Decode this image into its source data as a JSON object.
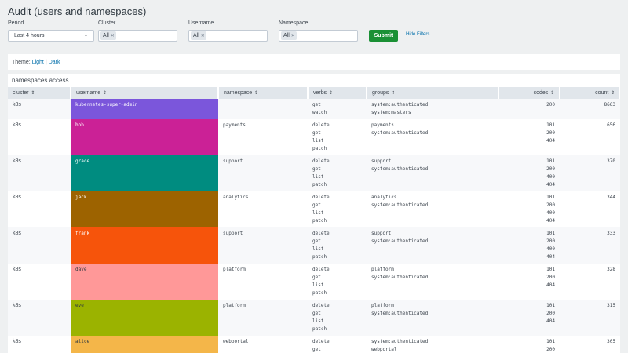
{
  "page": {
    "title": "Audit (users and namespaces)"
  },
  "filters": {
    "period": {
      "label": "Period",
      "value": "Last 4 hours"
    },
    "cluster": {
      "label": "Cluster",
      "token": "All"
    },
    "username": {
      "label": "Username",
      "token": "All"
    },
    "namespace": {
      "label": "Namespace",
      "token": "All"
    },
    "submit_label": "Submit",
    "hide_label": "Hide Filters"
  },
  "theme": {
    "prefix": "Theme:",
    "light": "Light",
    "separator": "|",
    "dark": "Dark"
  },
  "table": {
    "title": "namespaces access",
    "columns": [
      "cluster",
      "username",
      "namespace",
      "verbs",
      "groups",
      "codes",
      "count"
    ],
    "sort_icon": "sort-icon",
    "rows": [
      {
        "cluster": "k8s",
        "username": "kubernetes-super-admin",
        "color": "#7b56db",
        "text_dark": false,
        "namespace": "",
        "verbs": [
          "get",
          "watch"
        ],
        "groups": [
          "system:authenticated",
          "system:masters"
        ],
        "codes": [
          "200"
        ],
        "count": "8663"
      },
      {
        "cluster": "k8s",
        "username": "bob",
        "color": "#cb2196",
        "text_dark": false,
        "namespace": "payments",
        "verbs": [
          "delete",
          "get",
          "list",
          "patch"
        ],
        "groups": [
          "payments",
          "system:authenticated"
        ],
        "codes": [
          "101",
          "200",
          "404"
        ],
        "count": "656"
      },
      {
        "cluster": "k8s",
        "username": "grace",
        "color": "#008c80",
        "text_dark": false,
        "namespace": "support",
        "verbs": [
          "delete",
          "get",
          "list",
          "patch"
        ],
        "groups": [
          "support",
          "system:authenticated"
        ],
        "codes": [
          "101",
          "200",
          "400",
          "404"
        ],
        "count": "370"
      },
      {
        "cluster": "k8s",
        "username": "jack",
        "color": "#9d6300",
        "text_dark": false,
        "namespace": "analytics",
        "verbs": [
          "delete",
          "get",
          "list",
          "patch"
        ],
        "groups": [
          "analytics",
          "system:authenticated"
        ],
        "codes": [
          "101",
          "200",
          "400",
          "404"
        ],
        "count": "344"
      },
      {
        "cluster": "k8s",
        "username": "frank",
        "color": "#f6540b",
        "text_dark": false,
        "namespace": "support",
        "verbs": [
          "delete",
          "get",
          "list",
          "patch"
        ],
        "groups": [
          "support",
          "system:authenticated"
        ],
        "codes": [
          "101",
          "200",
          "400",
          "404"
        ],
        "count": "333"
      },
      {
        "cluster": "k8s",
        "username": "dave",
        "color": "#ff9898",
        "text_dark": true,
        "namespace": "platform",
        "verbs": [
          "delete",
          "get",
          "list",
          "patch"
        ],
        "groups": [
          "platform",
          "system:authenticated"
        ],
        "codes": [
          "101",
          "200",
          "404"
        ],
        "count": "328"
      },
      {
        "cluster": "k8s",
        "username": "eve",
        "color": "#9bb300",
        "text_dark": true,
        "namespace": "platform",
        "verbs": [
          "delete",
          "get",
          "list",
          "patch"
        ],
        "groups": [
          "platform",
          "system:authenticated"
        ],
        "codes": [
          "101",
          "200",
          "404"
        ],
        "count": "315"
      },
      {
        "cluster": "k8s",
        "username": "alice",
        "color": "#f4b649",
        "text_dark": true,
        "namespace": "webportal",
        "verbs": [
          "delete",
          "get"
        ],
        "groups": [
          "system:authenticated",
          "webportal"
        ],
        "codes": [
          "101",
          "200"
        ],
        "count": "305"
      }
    ]
  }
}
